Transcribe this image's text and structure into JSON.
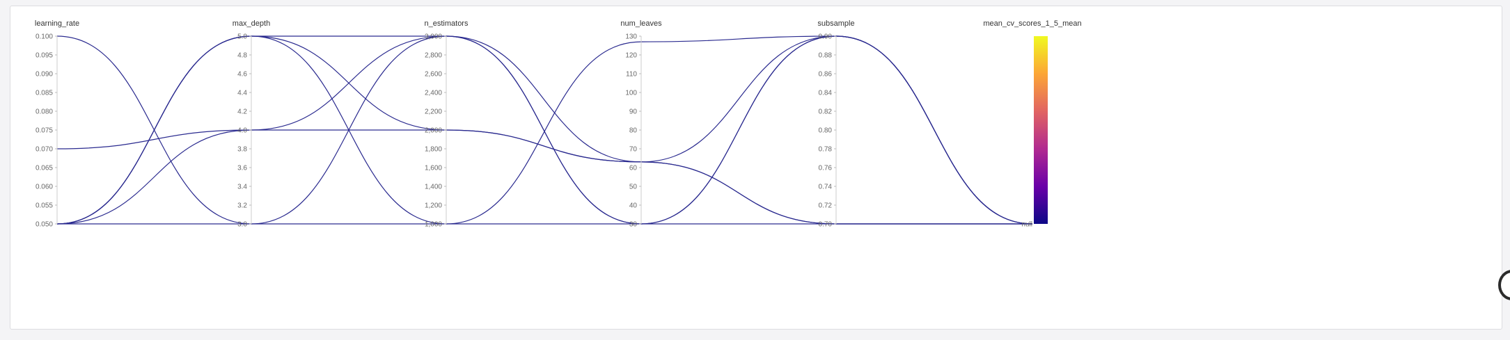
{
  "chart_data": {
    "type": "parallel_coordinates",
    "line_color": "#2a2a8f",
    "colorscale": [
      "#0d0887",
      "#6a00a8",
      "#b12a90",
      "#e16462",
      "#fca636",
      "#f0f921"
    ],
    "axes": [
      {
        "name": "learning_rate",
        "range": [
          0.05,
          0.1
        ],
        "ticks": [
          "0.100",
          "0.095",
          "0.090",
          "0.085",
          "0.080",
          "0.075",
          "0.070",
          "0.065",
          "0.060",
          "0.055",
          "0.050"
        ]
      },
      {
        "name": "max_depth",
        "range": [
          3.0,
          5.0
        ],
        "ticks": [
          "5.0",
          "4.8",
          "4.6",
          "4.4",
          "4.2",
          "4.0",
          "3.8",
          "3.6",
          "3.4",
          "3.2",
          "3.0"
        ]
      },
      {
        "name": "n_estimators",
        "range": [
          1000,
          3000
        ],
        "ticks": [
          "3,000",
          "2,800",
          "2,600",
          "2,400",
          "2,200",
          "2,000",
          "1,800",
          "1,600",
          "1,400",
          "1,200",
          "1,000"
        ]
      },
      {
        "name": "num_leaves",
        "range": [
          30,
          130
        ],
        "ticks": [
          "130",
          "120",
          "110",
          "100",
          "90",
          "80",
          "70",
          "60",
          "50",
          "40",
          "30"
        ]
      },
      {
        "name": "subsample",
        "range": [
          0.7,
          0.9
        ],
        "ticks": [
          "0.90",
          "0.88",
          "0.86",
          "0.84",
          "0.82",
          "0.80",
          "0.78",
          "0.76",
          "0.74",
          "0.72",
          "0.70"
        ]
      },
      {
        "name": "mean_cv_scores_1_5_mean",
        "range": null,
        "ticks": [
          "null"
        ],
        "colorbar": true
      }
    ],
    "lines": [
      [
        0.05,
        5.0,
        3000,
        30,
        0.9,
        "null"
      ],
      [
        0.05,
        4.0,
        3000,
        30,
        0.9,
        "null"
      ],
      [
        0.07,
        4.0,
        2000,
        63,
        0.9,
        "null"
      ],
      [
        0.1,
        3.0,
        3000,
        63,
        0.7,
        "null"
      ],
      [
        0.05,
        5.0,
        2000,
        63,
        0.7,
        "null"
      ],
      [
        0.05,
        5.0,
        1000,
        127,
        0.9,
        "null"
      ],
      [
        0.05,
        3.0,
        1000,
        30,
        0.7,
        "null"
      ]
    ]
  }
}
